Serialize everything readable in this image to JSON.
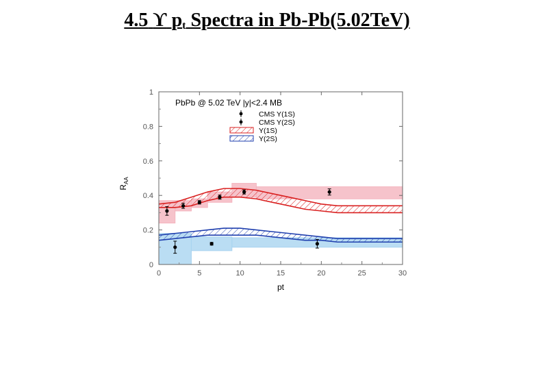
{
  "slide": {
    "title_prefix": "4.5",
    "upsilon": "ϒ",
    "p": "p",
    "sub": "t",
    "title_rest": "Spectra in Pb-Pb(5.02TeV)"
  },
  "chart_data": {
    "type": "scatter",
    "title": "PbPb @ 5.02 TeV |y|<2.4 MB",
    "xlabel": "pt",
    "ylabel": "R_AA",
    "xlim": [
      0,
      30
    ],
    "ylim": [
      0,
      1
    ],
    "xticks": [
      0,
      5,
      10,
      15,
      20,
      25,
      30
    ],
    "yticks": [
      0,
      0.2,
      0.4,
      0.6,
      0.8,
      1
    ],
    "ytick_labels": [
      "0",
      "0.2",
      "0.4",
      "0.6",
      "0.8",
      "1"
    ],
    "legend_position": "top-right",
    "grid": false,
    "legend": [
      {
        "label": "CMS Y(1S)",
        "kind": "point"
      },
      {
        "label": "CMS Y(2S)",
        "kind": "point"
      },
      {
        "label": "Y(1S)",
        "kind": "band"
      },
      {
        "label": "Y(2S)",
        "kind": "band"
      }
    ],
    "series": [
      {
        "name": "CMS Y(1S)",
        "kind": "points",
        "color": "#000000",
        "x": [
          1,
          3,
          5,
          7.5,
          10.5,
          21
        ],
        "y": [
          0.31,
          0.34,
          0.36,
          0.39,
          0.42,
          0.42
        ],
        "yerr": [
          0.025,
          0.015,
          0.01,
          0.012,
          0.012,
          0.018
        ],
        "syst": [
          {
            "x0": 0,
            "x1": 2,
            "y0": 0.24,
            "y1": 0.37
          },
          {
            "x0": 2,
            "x1": 4,
            "y0": 0.31,
            "y1": 0.37
          },
          {
            "x0": 4,
            "x1": 6,
            "y0": 0.33,
            "y1": 0.38
          },
          {
            "x0": 6,
            "x1": 9,
            "y0": 0.36,
            "y1": 0.42
          },
          {
            "x0": 9,
            "x1": 12,
            "y0": 0.39,
            "y1": 0.47
          },
          {
            "x0": 12,
            "x1": 30,
            "y0": 0.38,
            "y1": 0.45
          }
        ],
        "fill": "#f4b4be"
      },
      {
        "name": "CMS Y(2S)",
        "kind": "points",
        "color": "#000000",
        "x": [
          2,
          6.5,
          19.5
        ],
        "y": [
          0.1,
          0.12,
          0.12
        ],
        "yerr": [
          0.035,
          0.008,
          0.025
        ],
        "syst": [
          {
            "x0": 0,
            "x1": 4,
            "y0": 0,
            "y1": 0.18
          },
          {
            "x0": 4,
            "x1": 9,
            "y0": 0.08,
            "y1": 0.16
          },
          {
            "x0": 9,
            "x1": 30,
            "y0": 0.1,
            "y1": 0.155
          }
        ],
        "fill": "#a9d4f0"
      },
      {
        "name": "Y(1S)",
        "kind": "band",
        "color": "#d92020",
        "x": [
          0,
          2,
          4,
          6,
          8,
          10,
          12,
          14,
          16,
          18,
          20,
          22,
          24,
          26,
          28,
          30
        ],
        "lower": [
          0.33,
          0.33,
          0.34,
          0.37,
          0.39,
          0.39,
          0.38,
          0.36,
          0.34,
          0.32,
          0.31,
          0.3,
          0.3,
          0.3,
          0.3,
          0.3
        ],
        "upper": [
          0.35,
          0.36,
          0.39,
          0.42,
          0.44,
          0.44,
          0.43,
          0.41,
          0.39,
          0.37,
          0.35,
          0.34,
          0.34,
          0.34,
          0.34,
          0.34
        ]
      },
      {
        "name": "Y(2S)",
        "kind": "band",
        "color": "#1f3fae",
        "x": [
          0,
          2,
          4,
          6,
          8,
          10,
          12,
          14,
          16,
          18,
          20,
          22,
          24,
          26,
          28,
          30
        ],
        "lower": [
          0.14,
          0.15,
          0.16,
          0.17,
          0.17,
          0.17,
          0.17,
          0.16,
          0.15,
          0.14,
          0.14,
          0.13,
          0.13,
          0.13,
          0.13,
          0.13
        ],
        "upper": [
          0.17,
          0.18,
          0.19,
          0.2,
          0.21,
          0.21,
          0.2,
          0.19,
          0.18,
          0.17,
          0.16,
          0.15,
          0.15,
          0.15,
          0.15,
          0.15
        ]
      }
    ]
  }
}
